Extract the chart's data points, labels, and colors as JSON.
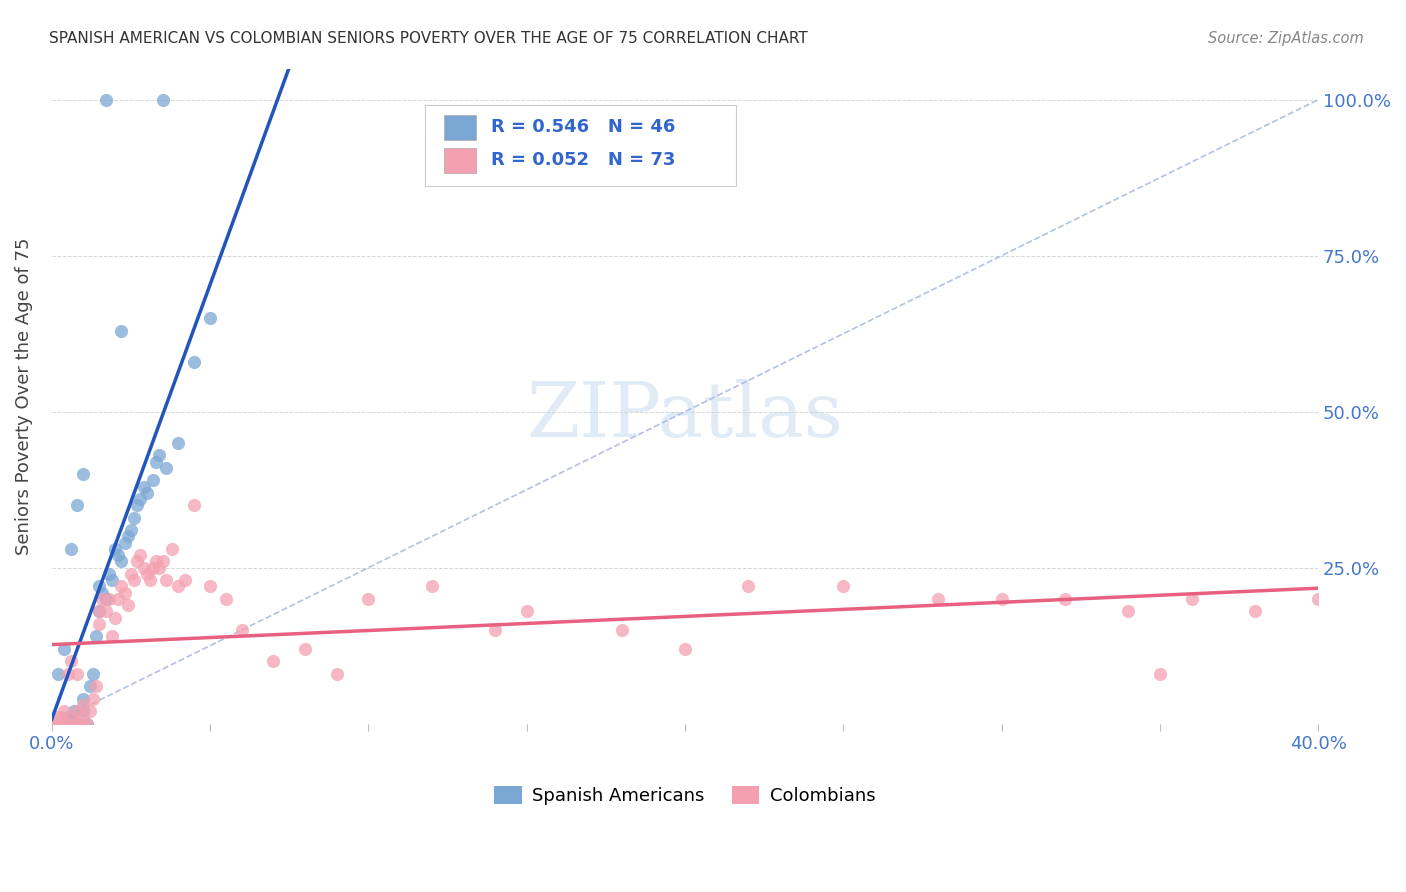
{
  "title": "SPANISH AMERICAN VS COLOMBIAN SENIORS POVERTY OVER THE AGE OF 75 CORRELATION CHART",
  "source": "Source: ZipAtlas.com",
  "ylabel": "Seniors Poverty Over the Age of 75",
  "xlim": [
    0.0,
    0.4
  ],
  "ylim": [
    0.0,
    1.05
  ],
  "blue_color": "#7BA7D4",
  "blue_color_edge": "#7BA7D4",
  "pink_color": "#F4A0B0",
  "pink_color_edge": "#F4A0B0",
  "blue_line_color": "#2255BB",
  "pink_line_color": "#E86080",
  "diag_line_color": "#AABBDD",
  "R_blue": 0.546,
  "N_blue": 46,
  "R_pink": 0.052,
  "N_pink": 73,
  "yticks": [
    0.0,
    0.25,
    0.5,
    0.75,
    1.0
  ],
  "ytick_labels_right": [
    "",
    "25.0%",
    "50.0%",
    "75.0%",
    "100.0%"
  ],
  "xticks": [
    0.0,
    0.05,
    0.1,
    0.15,
    0.2,
    0.25,
    0.3,
    0.35,
    0.4
  ],
  "blue_x": [
    0.002,
    0.003,
    0.004,
    0.005,
    0.006,
    0.007,
    0.008,
    0.009,
    0.01,
    0.01,
    0.011,
    0.012,
    0.013,
    0.014,
    0.015,
    0.015,
    0.016,
    0.017,
    0.018,
    0.019,
    0.02,
    0.021,
    0.022,
    0.023,
    0.024,
    0.025,
    0.026,
    0.027,
    0.028,
    0.029,
    0.03,
    0.032,
    0.033,
    0.034,
    0.036,
    0.04,
    0.045,
    0.05,
    0.017,
    0.035,
    0.022,
    0.01,
    0.008,
    0.006,
    0.004,
    0.002
  ],
  "blue_y": [
    0.0,
    0.0,
    0.0,
    0.01,
    0.01,
    0.02,
    0.0,
    0.0,
    0.02,
    0.04,
    0.0,
    0.06,
    0.08,
    0.14,
    0.18,
    0.22,
    0.21,
    0.2,
    0.24,
    0.23,
    0.28,
    0.27,
    0.26,
    0.29,
    0.3,
    0.31,
    0.33,
    0.35,
    0.36,
    0.38,
    0.37,
    0.39,
    0.42,
    0.43,
    0.41,
    0.45,
    0.58,
    0.65,
    1.0,
    1.0,
    0.63,
    0.4,
    0.35,
    0.28,
    0.12,
    0.08
  ],
  "pink_x": [
    0.001,
    0.002,
    0.003,
    0.004,
    0.005,
    0.006,
    0.007,
    0.008,
    0.009,
    0.01,
    0.01,
    0.011,
    0.012,
    0.013,
    0.014,
    0.015,
    0.015,
    0.016,
    0.017,
    0.018,
    0.019,
    0.02,
    0.021,
    0.022,
    0.023,
    0.024,
    0.025,
    0.026,
    0.027,
    0.028,
    0.029,
    0.03,
    0.031,
    0.032,
    0.033,
    0.034,
    0.035,
    0.036,
    0.038,
    0.04,
    0.042,
    0.045,
    0.05,
    0.055,
    0.06,
    0.07,
    0.08,
    0.09,
    0.1,
    0.12,
    0.14,
    0.15,
    0.18,
    0.2,
    0.22,
    0.25,
    0.28,
    0.3,
    0.32,
    0.34,
    0.36,
    0.38,
    0.4,
    0.42,
    0.0,
    0.001,
    0.002,
    0.003,
    0.004,
    0.005,
    0.006,
    0.008,
    0.35
  ],
  "pink_y": [
    0.0,
    0.0,
    0.01,
    0.0,
    0.0,
    0.01,
    0.0,
    0.02,
    0.0,
    0.01,
    0.03,
    0.0,
    0.02,
    0.04,
    0.06,
    0.16,
    0.18,
    0.2,
    0.18,
    0.2,
    0.14,
    0.17,
    0.2,
    0.22,
    0.21,
    0.19,
    0.24,
    0.23,
    0.26,
    0.27,
    0.25,
    0.24,
    0.23,
    0.25,
    0.26,
    0.25,
    0.26,
    0.23,
    0.28,
    0.22,
    0.23,
    0.35,
    0.22,
    0.2,
    0.15,
    0.1,
    0.12,
    0.08,
    0.2,
    0.22,
    0.15,
    0.18,
    0.15,
    0.12,
    0.22,
    0.22,
    0.2,
    0.2,
    0.2,
    0.18,
    0.2,
    0.18,
    0.2,
    0.2,
    0.0,
    0.0,
    0.01,
    0.0,
    0.02,
    0.08,
    0.1,
    0.08,
    0.08
  ]
}
